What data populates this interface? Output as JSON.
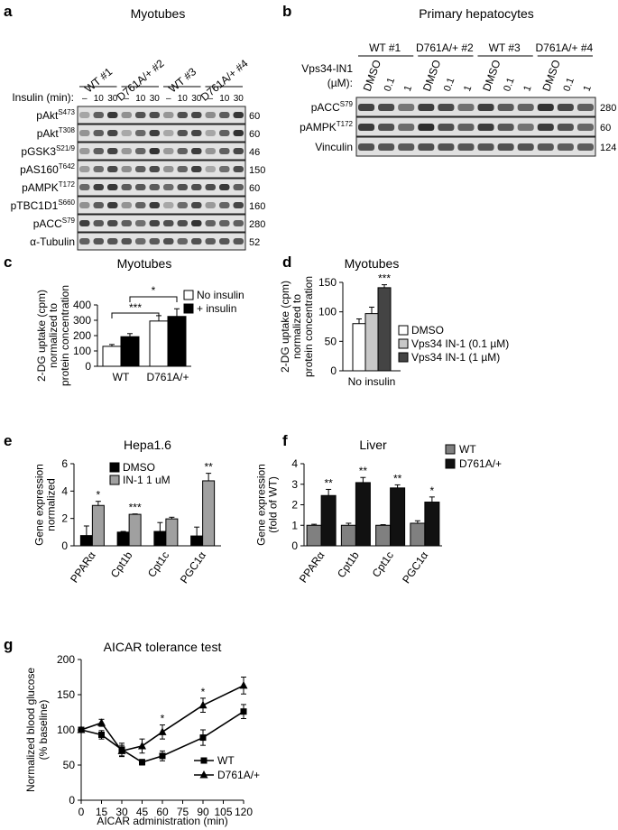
{
  "panels": {
    "a": {
      "letter": "a",
      "title": "Myotubes",
      "groups": [
        "WT #1",
        "D761A/+ #2",
        "WT #3",
        "D761A/+ #4"
      ],
      "insulin_label": "Insulin (min):",
      "insulin_values": [
        "–",
        "10",
        "30"
      ],
      "rows": [
        {
          "base": "pAkt",
          "sup": "S473",
          "kda": "60"
        },
        {
          "base": "pAkt",
          "sup": "T308",
          "kda": "60"
        },
        {
          "base": "pGSK3",
          "sup": "S21/9",
          "kda": "46"
        },
        {
          "base": "pAS160",
          "sup": "T642",
          "kda": "150"
        },
        {
          "base": "pAMPK",
          "sup": "T172",
          "kda": "60"
        },
        {
          "base": "pTBC1D1",
          "sup": "S660",
          "kda": "160"
        },
        {
          "base": "pACC",
          "sup": "S79",
          "kda": "280"
        },
        {
          "base": "α-Tubulin",
          "sup": "",
          "kda": "52"
        }
      ]
    },
    "b": {
      "letter": "b",
      "title": "Primary hepatocytes",
      "groups": [
        "WT #1",
        "D761A/+ #2",
        "WT #3",
        "D761A/+ #4"
      ],
      "treat_label_1": "Vps34-IN1",
      "treat_label_2": "(µM):",
      "treat_values": [
        "DMSO",
        "0.1",
        "1"
      ],
      "rows": [
        {
          "base": "pACC",
          "sup": "S79",
          "kda": "280"
        },
        {
          "base": "pAMPK",
          "sup": "T172",
          "kda": "60"
        },
        {
          "base": "Vinculin",
          "sup": "",
          "kda": "124"
        }
      ]
    },
    "c": {
      "letter": "c"
    },
    "d": {
      "letter": "d"
    },
    "e": {
      "letter": "e"
    },
    "f": {
      "letter": "f"
    },
    "g": {
      "letter": "g"
    }
  },
  "chart_data": [
    {
      "id": "c",
      "type": "bar",
      "title": "Myotubes",
      "ylabel": "2-DG uptake (cpm) normalized to protein concentration",
      "ylabel_lines": [
        "2-DG uptake (cpm)",
        "normalized to",
        "protein concentration"
      ],
      "categories": [
        "WT",
        "D761A/+"
      ],
      "ylim": [
        0,
        400
      ],
      "yticks": [
        0,
        100,
        200,
        300,
        400
      ],
      "series": [
        {
          "name": "No insulin",
          "color": "#ffffff",
          "values": [
            130,
            295
          ],
          "errors": [
            12,
            35
          ]
        },
        {
          "name": "+ insulin",
          "color": "#000000",
          "values": [
            193,
            325
          ],
          "errors": [
            20,
            50
          ]
        }
      ],
      "annotations": [
        {
          "text": "***",
          "from": [
            0,
            0
          ],
          "to": [
            1,
            0
          ]
        },
        {
          "text": "*",
          "from": [
            0,
            1
          ],
          "to": [
            1,
            1
          ]
        }
      ],
      "legend": "top-right"
    },
    {
      "id": "d",
      "type": "bar",
      "title": "Myotubes",
      "ylabel": "2-DG uptake (cpm) normalized to protein concentration",
      "ylabel_lines": [
        "2-DG uptake (cpm)",
        "normalized to",
        "protein concentration"
      ],
      "categories": [
        "No insulin"
      ],
      "ylim": [
        0,
        150
      ],
      "yticks": [
        0,
        50,
        100,
        150
      ],
      "series": [
        {
          "name": "DMSO",
          "color": "#ffffff",
          "values": [
            80
          ],
          "errors": [
            8
          ]
        },
        {
          "name": "Vps34 IN-1 (0.1 µM)",
          "color": "#c8c8c8",
          "values": [
            97
          ],
          "errors": [
            11
          ]
        },
        {
          "name": "Vps34 IN-1 (1 µM)",
          "color": "#444444",
          "values": [
            141
          ],
          "errors": [
            5
          ]
        }
      ],
      "annotations": [
        {
          "text": "***",
          "series": 2,
          "category": 0
        }
      ],
      "legend": "right"
    },
    {
      "id": "e",
      "type": "bar",
      "title": "Hepa1.6",
      "ylabel": "Gene expression normalized",
      "ylabel_lines": [
        "Gene expression",
        "normalized"
      ],
      "categories": [
        "PPARα",
        "Cpt1b",
        "Cpt1c",
        "PGC1α"
      ],
      "ylim": [
        0,
        6
      ],
      "yticks": [
        0,
        2,
        4,
        6
      ],
      "series": [
        {
          "name": "DMSO",
          "color": "#000000",
          "values": [
            0.75,
            1.0,
            1.05,
            0.72
          ],
          "errors": [
            0.7,
            0.05,
            0.65,
            0.65
          ]
        },
        {
          "name": "IN-1 1 uM",
          "color": "#a0a0a0",
          "values": [
            2.95,
            2.3,
            1.97,
            4.75
          ],
          "errors": [
            0.3,
            0.03,
            0.12,
            0.55
          ]
        }
      ],
      "annotations": [
        {
          "text": "*",
          "category": 0
        },
        {
          "text": "***",
          "category": 1
        },
        {
          "text": "**",
          "category": 3
        }
      ],
      "legend": "top-left"
    },
    {
      "id": "f",
      "type": "bar",
      "title": "Liver",
      "ylabel": "Gene expression (fold of WT)",
      "ylabel_lines": [
        "Gene expression",
        "(fold of WT)"
      ],
      "categories": [
        "PPARα",
        "Cpt1b",
        "Cpt1c",
        "PGC1α"
      ],
      "ylim": [
        0,
        4
      ],
      "yticks": [
        0,
        1,
        2,
        3,
        4
      ],
      "series": [
        {
          "name": "WT",
          "color": "#808080",
          "values": [
            1.0,
            1.0,
            1.0,
            1.1
          ],
          "errors": [
            0.05,
            0.1,
            0.03,
            0.12
          ]
        },
        {
          "name": "D761A/+",
          "color": "#111111",
          "values": [
            2.45,
            3.08,
            2.82,
            2.13
          ],
          "errors": [
            0.3,
            0.25,
            0.15,
            0.25
          ]
        }
      ],
      "annotations": [
        {
          "text": "**",
          "category": 0
        },
        {
          "text": "**",
          "category": 1
        },
        {
          "text": "**",
          "category": 2
        },
        {
          "text": "*",
          "category": 3
        }
      ],
      "legend": "top-right"
    },
    {
      "id": "g",
      "type": "line",
      "title": "AICAR tolerance test",
      "xlabel": "AICAR administration (min)",
      "ylabel": "Normalized blood glucose (% baseline)",
      "ylabel_lines": [
        "Normalized blood glucose",
        "(% baseline)"
      ],
      "xlim": [
        0,
        120
      ],
      "xticks": [
        0,
        15,
        30,
        45,
        60,
        75,
        90,
        105,
        120
      ],
      "ylim": [
        0,
        200
      ],
      "yticks": [
        0,
        50,
        100,
        150,
        200
      ],
      "x": [
        0,
        15,
        30,
        45,
        60,
        90,
        120
      ],
      "series": [
        {
          "name": "WT",
          "marker": "square",
          "values": [
            100,
            93,
            72,
            54,
            63,
            89,
            126
          ],
          "errors": [
            3,
            6,
            9,
            4,
            7,
            11,
            10
          ]
        },
        {
          "name": "D761A/+",
          "marker": "triangle",
          "values": [
            100,
            110,
            70,
            77,
            97,
            135,
            163
          ],
          "errors": [
            3,
            5,
            8,
            10,
            10,
            10,
            12
          ]
        }
      ],
      "annotations": [
        {
          "text": "*",
          "x": 60
        },
        {
          "text": "*",
          "x": 90
        }
      ],
      "legend": "bottom-right"
    }
  ]
}
